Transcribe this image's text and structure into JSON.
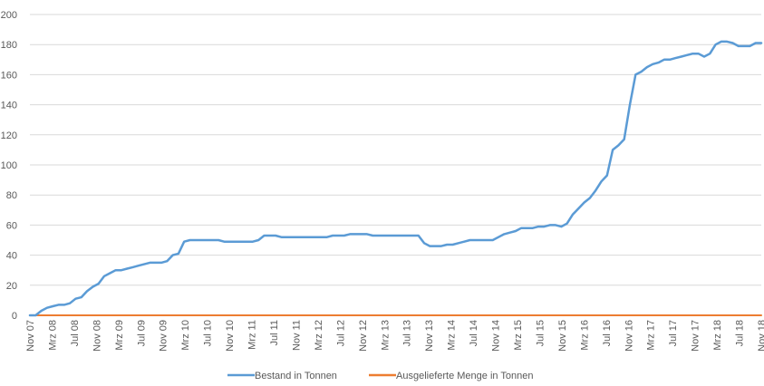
{
  "chart_data": {
    "type": "line",
    "title": "",
    "xlabel": "",
    "ylabel": "",
    "ylim": [
      0,
      200
    ],
    "yticks": [
      0,
      20,
      40,
      60,
      80,
      100,
      120,
      140,
      160,
      180,
      200
    ],
    "grid": "horizontal",
    "legend_position": "bottom",
    "x_tick_labels": [
      "Nov 07",
      "Mrz 08",
      "Jul 08",
      "Nov 08",
      "Mrz 09",
      "Jul 09",
      "Nov 09",
      "Mrz 10",
      "Jul 10",
      "Nov 10",
      "Mrz 11",
      "Jul 11",
      "Nov 11",
      "Mrz 12",
      "Jul 12",
      "Nov 12",
      "Mrz 13",
      "Jul 13",
      "Nov 13",
      "Mrz 14",
      "Jul 14",
      "Nov 14",
      "Mrz 15",
      "Jul 15",
      "Nov 15",
      "Mrz 16",
      "Jul 16",
      "Nov 16",
      "Mrz 17",
      "Jul 17",
      "Nov 17",
      "Mrz 18",
      "Jul 18",
      "Nov 18"
    ],
    "series": [
      {
        "name": "Bestand in Tonnen",
        "color": "#5b9bd5",
        "values": [
          0,
          0,
          3,
          5,
          6,
          7,
          7,
          8,
          11,
          12,
          16,
          19,
          21,
          26,
          28,
          30,
          30,
          31,
          32,
          33,
          34,
          35,
          35,
          35,
          36,
          40,
          41,
          49,
          50,
          50,
          50,
          50,
          50,
          50,
          49,
          49,
          49,
          49,
          49,
          49,
          50,
          53,
          53,
          53,
          52,
          52,
          52,
          52,
          52,
          52,
          52,
          52,
          52,
          53,
          53,
          53,
          54,
          54,
          54,
          54,
          53,
          53,
          53,
          53,
          53,
          53,
          53,
          53,
          53,
          48,
          46,
          46,
          46,
          47,
          47,
          48,
          49,
          50,
          50,
          50,
          50,
          50,
          52,
          54,
          55,
          56,
          58,
          58,
          58,
          59,
          59,
          60,
          60,
          59,
          61,
          67,
          71,
          75,
          78,
          83,
          89,
          93,
          110,
          113,
          117,
          140,
          160,
          162,
          165,
          167,
          168,
          170,
          170,
          171,
          172,
          173,
          174,
          174,
          172,
          174,
          180,
          182,
          182,
          181,
          179,
          179,
          179,
          181,
          181
        ]
      },
      {
        "name": "Ausgelieferte Menge in Tonnen",
        "color": "#ed7d31",
        "values": [
          0,
          0,
          0,
          0,
          0,
          0,
          0,
          0,
          0,
          0,
          0,
          0,
          0,
          0,
          0,
          0,
          0,
          0,
          0,
          0,
          0,
          0,
          0,
          0,
          0,
          0,
          0,
          0,
          0,
          0,
          0,
          0,
          0,
          0,
          0,
          0,
          0,
          0,
          0,
          0,
          0,
          0,
          0,
          0,
          0,
          0,
          0,
          0,
          0,
          0,
          0,
          0,
          0,
          0,
          0,
          0,
          0,
          0,
          0,
          0,
          0,
          0,
          0,
          0,
          0,
          0,
          0,
          0,
          0,
          0,
          0,
          0,
          0,
          0,
          0,
          0,
          0,
          0,
          0,
          0,
          0,
          0,
          0,
          0,
          0,
          0,
          0,
          0,
          0,
          0,
          0,
          0,
          0,
          0,
          0,
          0,
          0,
          0,
          0,
          0,
          0,
          0,
          0,
          0,
          0,
          0,
          0,
          0,
          0,
          0,
          0,
          0,
          0,
          0,
          0,
          0,
          0,
          0,
          0,
          0,
          0,
          0,
          0,
          0,
          0,
          0,
          0,
          0,
          0
        ]
      }
    ]
  }
}
